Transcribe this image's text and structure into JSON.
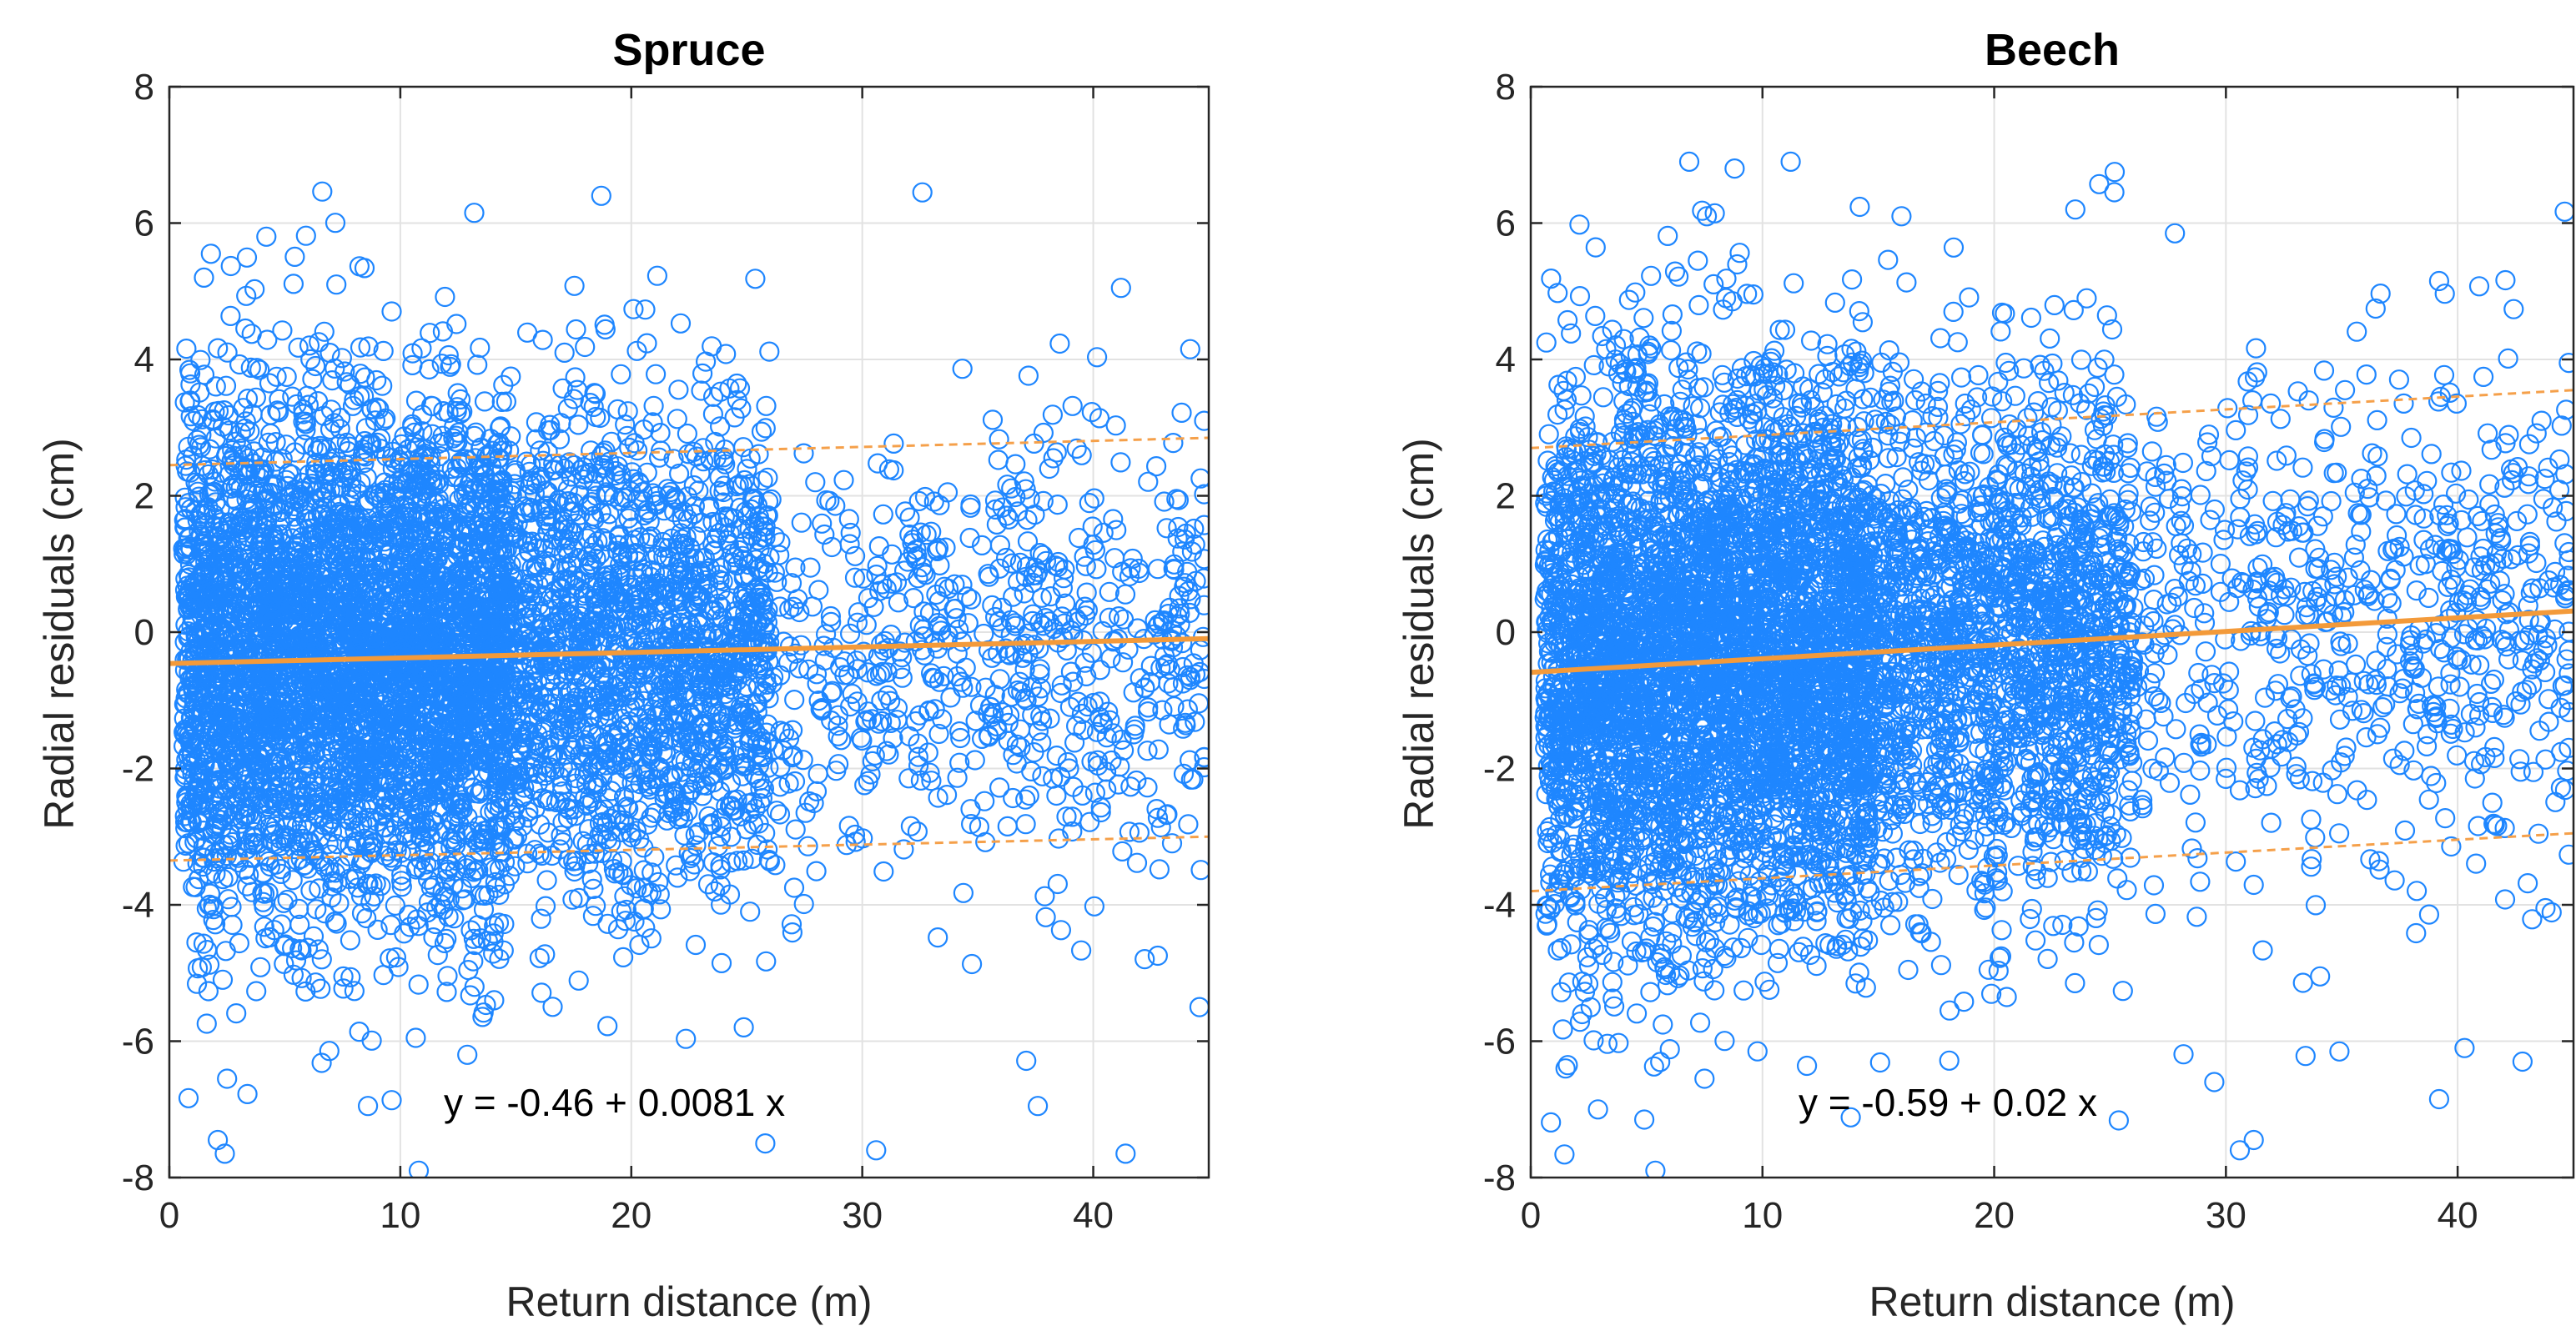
{
  "chart_data": [
    {
      "type": "scatter",
      "title": "Spruce",
      "xlabel": "Return distance (m)",
      "ylabel": "Radial residuals (cm)",
      "xlim": [
        0,
        45
      ],
      "ylim": [
        -8,
        8
      ],
      "xticks": [
        "0",
        "10",
        "20",
        "30",
        "40"
      ],
      "yticks": [
        "-8",
        "-6",
        "-4",
        "-2",
        "0",
        "2",
        "4",
        "6",
        "8"
      ],
      "grid": true,
      "marker": "open-circle",
      "colors": {
        "points": "#1e86ff",
        "fit": "#f39a3a",
        "bounds": "#f5a04a"
      },
      "fit": {
        "intercept": -0.46,
        "slope": 0.0081,
        "label": "y = -0.46 + 0.0081 x"
      },
      "bounds": {
        "upper": [
          [
            0,
            2.45
          ],
          [
            45,
            2.85
          ]
        ],
        "lower": [
          [
            0,
            -3.35
          ],
          [
            45,
            -3.0
          ]
        ]
      },
      "notable_points": [
        [
          4.2,
          5.8
        ],
        [
          18.7,
          6.4
        ],
        [
          32.6,
          6.45
        ],
        [
          13.2,
          6.15
        ],
        [
          1.8,
          5.55
        ],
        [
          1.5,
          5.2
        ],
        [
          41.2,
          5.05
        ],
        [
          2.1,
          -7.45
        ],
        [
          2.4,
          -7.65
        ],
        [
          10.8,
          -7.9
        ],
        [
          25.8,
          -7.5
        ],
        [
          30.6,
          -7.6
        ],
        [
          41.4,
          -7.65
        ],
        [
          37.6,
          -6.95
        ],
        [
          8.6,
          -6.95
        ],
        [
          12.9,
          -6.2
        ],
        [
          2.5,
          -6.55
        ],
        [
          44.6,
          -5.5
        ],
        [
          44.2,
          4.15
        ],
        [
          44.8,
          3.1
        ]
      ],
      "point_cloud": {
        "x_range": [
          0.5,
          45
        ],
        "y_center": -0.4,
        "y_spread_near": 2.6,
        "y_spread_far": 2.2,
        "count_estimate": 9000
      }
    },
    {
      "type": "scatter",
      "title": "Beech",
      "xlabel": "Return distance (m)",
      "ylabel": "Radial residuals (cm)",
      "xlim": [
        0,
        45
      ],
      "ylim": [
        -8,
        8
      ],
      "xticks": [
        "0",
        "10",
        "20",
        "30",
        "40"
      ],
      "yticks": [
        "-8",
        "-6",
        "-4",
        "-2",
        "0",
        "2",
        "4",
        "6",
        "8"
      ],
      "grid": true,
      "marker": "open-circle",
      "colors": {
        "points": "#1e86ff",
        "fit": "#f39a3a",
        "bounds": "#f5a04a"
      },
      "fit": {
        "intercept": -0.59,
        "slope": 0.02,
        "label": "y = -0.59 + 0.02 x"
      },
      "bounds": {
        "upper": [
          [
            0,
            2.7
          ],
          [
            45,
            3.55
          ]
        ],
        "lower": [
          [
            0,
            -3.8
          ],
          [
            45,
            -2.95
          ]
        ]
      },
      "notable_points": [
        [
          8.8,
          6.8
        ],
        [
          25.2,
          6.75
        ],
        [
          16.0,
          6.1
        ],
        [
          7.6,
          6.1
        ],
        [
          23.5,
          6.2
        ],
        [
          27.8,
          5.85
        ],
        [
          39.2,
          5.15
        ],
        [
          44.8,
          3.95
        ],
        [
          30.6,
          -7.6
        ],
        [
          31.2,
          -7.45
        ],
        [
          29.5,
          -6.6
        ],
        [
          39.2,
          -6.85
        ],
        [
          44.7,
          -0.4
        ],
        [
          42.8,
          -6.3
        ],
        [
          4.9,
          -7.15
        ],
        [
          2.9,
          -7.0
        ],
        [
          1.5,
          -6.4
        ],
        [
          40.3,
          -6.1
        ],
        [
          34.9,
          -6.15
        ],
        [
          7.5,
          -6.55
        ]
      ],
      "point_cloud": {
        "x_range": [
          0.5,
          45
        ],
        "y_center": -0.3,
        "y_spread_near": 2.9,
        "y_spread_far": 2.4,
        "count_estimate": 9000
      }
    }
  ]
}
